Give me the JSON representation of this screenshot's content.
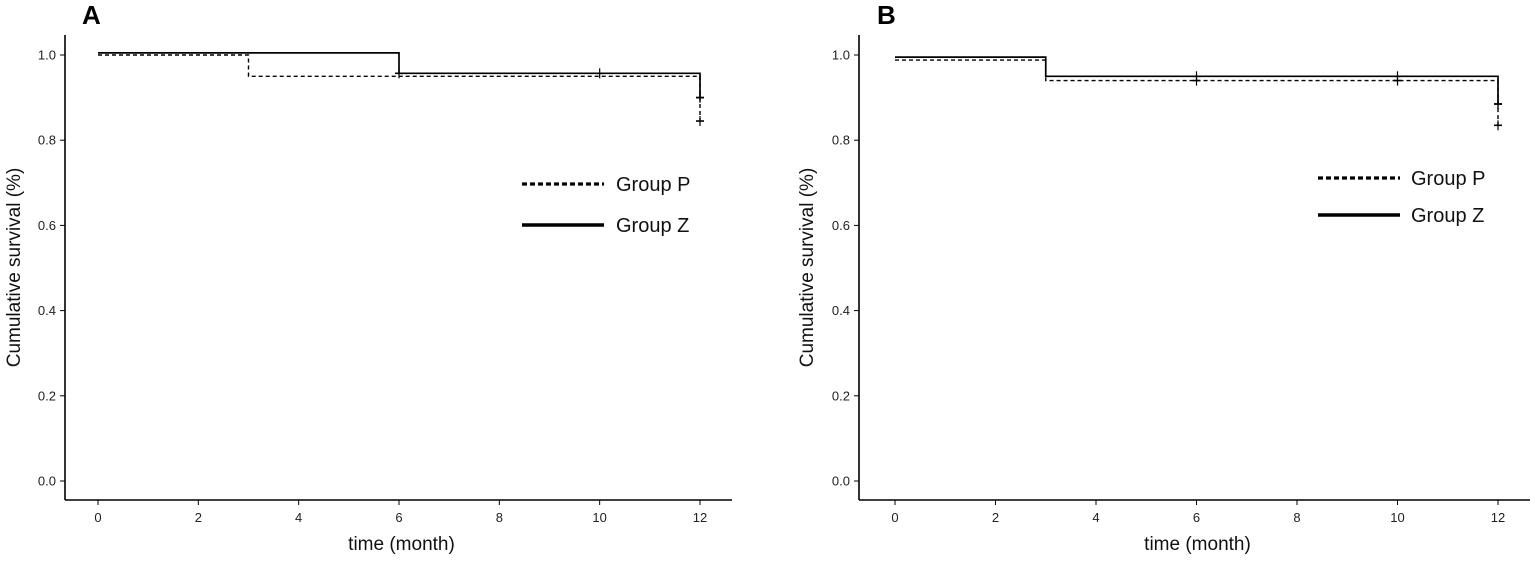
{
  "chart_data": [
    {
      "type": "line",
      "panel_label": "A",
      "xlabel": "time (month)",
      "ylabel": "Cumulative survival (%)",
      "xlim": [
        0,
        12
      ],
      "ylim": [
        0,
        1
      ],
      "x_ticks": [
        "0",
        "2",
        "4",
        "6",
        "8",
        "10",
        "12"
      ],
      "y_ticks": [
        "0.0",
        "0.2",
        "0.4",
        "0.6",
        "0.8",
        "1.0"
      ],
      "grid": false,
      "legend_position": "right",
      "series": [
        {
          "name": "Group P",
          "style": "dashed",
          "steps": [
            [
              0,
              1.0
            ],
            [
              3,
              0.95
            ],
            [
              12,
              0.95
            ]
          ],
          "drop_at_end": 0.845,
          "censor_marks": [
            [
              12,
              0.9
            ],
            [
              12,
              0.845
            ]
          ]
        },
        {
          "name": "Group Z",
          "style": "solid",
          "steps": [
            [
              0,
              1.005
            ],
            [
              6,
              0.957
            ],
            [
              12,
              0.957
            ]
          ],
          "drop_at_end": 0.9,
          "censor_marks": [
            [
              6,
              0.957
            ],
            [
              10,
              0.957
            ],
            [
              12,
              0.9
            ]
          ]
        }
      ]
    },
    {
      "type": "line",
      "panel_label": "B",
      "xlabel": "time (month)",
      "ylabel": "Cumulative survival (%)",
      "xlim": [
        0,
        12
      ],
      "ylim": [
        0,
        1
      ],
      "x_ticks": [
        "0",
        "2",
        "4",
        "6",
        "8",
        "10",
        "12"
      ],
      "y_ticks": [
        "0.0",
        "0.2",
        "0.4",
        "0.6",
        "0.8",
        "1.0"
      ],
      "grid": false,
      "legend_position": "right",
      "series": [
        {
          "name": "Group P",
          "style": "dashed",
          "steps": [
            [
              0,
              0.988
            ],
            [
              3,
              0.94
            ],
            [
              12,
              0.94
            ]
          ],
          "drop_at_end": 0.835,
          "censor_marks": [
            [
              6,
              0.94
            ],
            [
              10,
              0.94
            ],
            [
              12,
              0.885
            ],
            [
              12,
              0.835
            ]
          ]
        },
        {
          "name": "Group Z",
          "style": "solid",
          "steps": [
            [
              0,
              0.995
            ],
            [
              3,
              0.95
            ],
            [
              12,
              0.95
            ]
          ],
          "drop_at_end": 0.885,
          "censor_marks": [
            [
              6,
              0.95
            ],
            [
              10,
              0.95
            ],
            [
              12,
              0.885
            ]
          ]
        }
      ]
    }
  ]
}
